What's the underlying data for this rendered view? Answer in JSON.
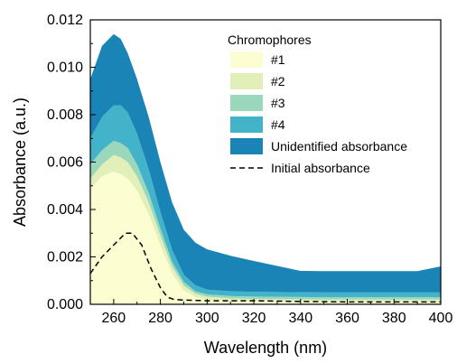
{
  "chart_data": {
    "type": "area",
    "xlabel": "Wavelength (nm)",
    "ylabel": "Absorbance (a.u.)",
    "xlim": [
      250,
      400
    ],
    "ylim": [
      0,
      0.012
    ],
    "x_ticks": [
      "260",
      "280",
      "300",
      "320",
      "340",
      "360",
      "380",
      "400"
    ],
    "y_ticks": [
      "0.000",
      "0.002",
      "0.004",
      "0.006",
      "0.008",
      "0.010",
      "0.012"
    ],
    "x_tick_values": [
      260,
      280,
      300,
      320,
      340,
      360,
      380,
      400
    ],
    "y_tick_values": [
      0,
      0.002,
      0.004,
      0.006,
      0.008,
      0.01,
      0.012
    ],
    "legend": {
      "title": "Chromophores",
      "position": "top-right"
    },
    "x": [
      250,
      255,
      260,
      263,
      266,
      270,
      275,
      280,
      285,
      290,
      295,
      300,
      310,
      320,
      330,
      340,
      350,
      360,
      370,
      380,
      390,
      400
    ],
    "series": [
      {
        "name": "#1",
        "color": "#fdfdd2",
        "values": [
          0.0049,
          0.0054,
          0.0056,
          0.0055,
          0.0053,
          0.0048,
          0.0038,
          0.0025,
          0.0013,
          0.0006,
          0.0003,
          0.0002,
          0.00015,
          0.00013,
          0.00012,
          0.00011,
          0.0001,
          0.0001,
          0.0001,
          0.0001,
          0.0001,
          0.0001
        ]
      },
      {
        "name": "#2",
        "color": "#e2efb9",
        "values": [
          0.0004,
          0.0005,
          0.0007,
          0.0007,
          0.0007,
          0.0006,
          0.0005,
          0.0004,
          0.0003,
          0.0002,
          0.00015,
          0.00012,
          0.0001,
          0.0001,
          0.0001,
          0.0001,
          0.0001,
          0.0001,
          0.0001,
          0.0001,
          0.0001,
          0.0001
        ]
      },
      {
        "name": "#3",
        "color": "#9bd8bb",
        "values": [
          0.0006,
          0.0006,
          0.0006,
          0.0006,
          0.0006,
          0.0005,
          0.0004,
          0.0003,
          0.0002,
          0.00015,
          0.0001,
          0.0001,
          0.0001,
          0.0001,
          0.0001,
          0.0001,
          0.0001,
          0.0001,
          0.0001,
          0.0001,
          0.0001,
          0.0001
        ]
      },
      {
        "name": "#4",
        "color": "#42b3c8",
        "values": [
          0.0011,
          0.0014,
          0.0015,
          0.0016,
          0.0015,
          0.0013,
          0.001,
          0.0007,
          0.0005,
          0.0003,
          0.00025,
          0.0002,
          0.0002,
          0.0002,
          0.0002,
          0.0002,
          0.0002,
          0.0002,
          0.0002,
          0.0002,
          0.0002,
          0.0002
        ]
      },
      {
        "name": "Unidentified absorbance",
        "color": "#1b84b6",
        "values": [
          0.0025,
          0.003,
          0.003,
          0.0028,
          0.0025,
          0.0023,
          0.0022,
          0.0021,
          0.002,
          0.0019,
          0.0018,
          0.0017,
          0.0015,
          0.0013,
          0.0011,
          0.0009,
          0.0009,
          0.0009,
          0.0009,
          0.0009,
          0.0009,
          0.0011
        ]
      }
    ],
    "initial_absorbance": {
      "name": "Initial absorbance",
      "style": "dashed",
      "color": "#000000",
      "x": [
        250,
        255,
        260,
        265,
        268,
        272,
        276,
        280,
        283,
        286,
        290,
        300,
        320,
        340,
        360,
        380,
        400
      ],
      "values": [
        0.0013,
        0.002,
        0.0025,
        0.003,
        0.003,
        0.0025,
        0.0015,
        0.0007,
        0.0003,
        0.0002,
        0.00018,
        0.00015,
        0.00015,
        0.00012,
        0.0001,
        0.0001,
        0.0001
      ]
    }
  }
}
